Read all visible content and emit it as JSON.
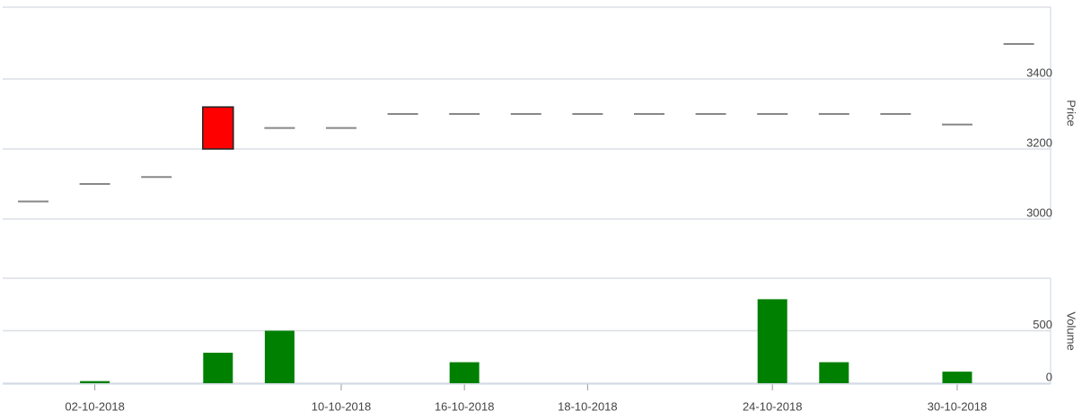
{
  "chart_data": {
    "type": "candlestick",
    "categories": [
      null,
      "02-10-2018",
      null,
      null,
      null,
      "10-10-2018",
      null,
      "16-10-2018",
      null,
      "18-10-2018",
      null,
      null,
      "24-10-2018",
      null,
      null,
      "30-10-2018",
      null
    ],
    "open": [
      3050,
      3100,
      3120,
      3320,
      3260,
      3260,
      3300,
      3300,
      3300,
      3300,
      3300,
      3300,
      3300,
      3300,
      3300,
      3270,
      3500
    ],
    "close": [
      3050,
      3100,
      3120,
      3200,
      3260,
      3260,
      3300,
      3300,
      3300,
      3300,
      3300,
      3300,
      3300,
      3300,
      3300,
      3270,
      3500
    ],
    "up_color": "#888888",
    "down_color": "#ff0000",
    "ylabel": "Price",
    "ylim": [
      3000,
      3600
    ],
    "yticks": [
      3000,
      3200,
      3400
    ],
    "volume": [
      0,
      20,
      0,
      290,
      500,
      0,
      0,
      200,
      0,
      0,
      0,
      0,
      800,
      200,
      0,
      110,
      0
    ],
    "volume_color": "#008000",
    "y2label": "Volume",
    "y2lim": [
      0,
      1000
    ],
    "y2ticks": [
      0,
      500
    ],
    "grid": true
  }
}
